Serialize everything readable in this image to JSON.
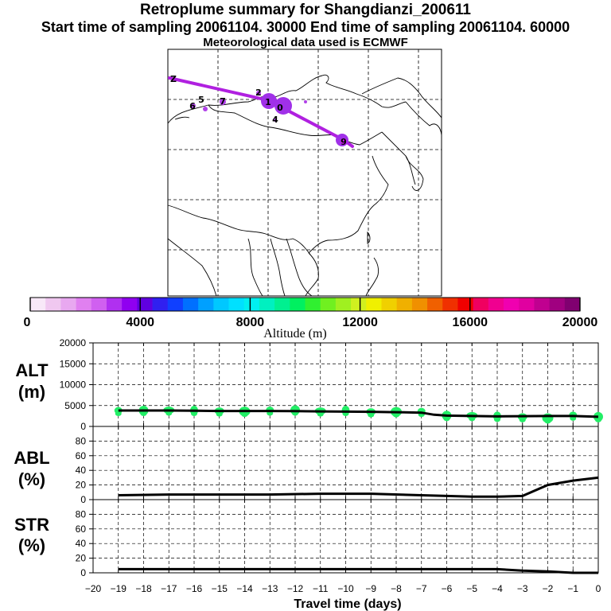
{
  "header": {
    "title": "Retroplume summary for Shangdianzi_200611",
    "sampling": "Start time of sampling 20061104. 30000     End time of sampling 20061104. 60000",
    "met": "Meteorological data used is ECMWF"
  },
  "colors": {
    "plume": "#b020e0",
    "points": "#22ee66",
    "line": "#000000"
  },
  "colorbar": {
    "labels": [
      "0",
      "4000",
      "8000",
      "12000",
      "16000",
      "20000"
    ],
    "title": "Altitude (m)",
    "colors": [
      "#f8e8f8",
      "#f0c8f0",
      "#e8a8f0",
      "#e080f0",
      "#d060f0",
      "#b030f0",
      "#9000f0",
      "#6000e0",
      "#3020f0",
      "#1040ff",
      "#0070ff",
      "#00a0ff",
      "#00c8ff",
      "#00e0ff",
      "#00f0f0",
      "#00f0c0",
      "#00f090",
      "#00f060",
      "#30f030",
      "#70f020",
      "#a0f020",
      "#d0f020",
      "#f0f000",
      "#f0d000",
      "#f0b000",
      "#f09000",
      "#f06000",
      "#f03000",
      "#f00000",
      "#f00060",
      "#f00090",
      "#f000b0",
      "#e000a0",
      "#c00090",
      "#a00080",
      "#800070"
    ]
  },
  "map": {
    "plume_labels": [
      "Z",
      "2",
      "1",
      "0",
      "5",
      "6",
      "7",
      "4",
      "9"
    ]
  },
  "chart_data": [
    {
      "type": "scatter",
      "name": "ALT",
      "ylabel": "ALT\n(m)",
      "label_line1": "ALT",
      "label_line2": "(m)",
      "ylim": [
        0,
        20000
      ],
      "yticks": [
        "20000",
        "15000",
        "10000",
        "5000",
        "0"
      ],
      "line_x": [
        -19,
        -18,
        -17,
        -16,
        -15,
        -14,
        -13,
        -12,
        -11,
        -10,
        -9,
        -8,
        -7,
        -6.5,
        -6,
        -5,
        -4,
        -3,
        -2,
        -1,
        0
      ],
      "line_y": [
        3800,
        3800,
        3800,
        3750,
        3700,
        3700,
        3700,
        3650,
        3600,
        3550,
        3500,
        3400,
        3300,
        2800,
        2600,
        2500,
        2400,
        2450,
        2500,
        2500,
        2300
      ],
      "points": [
        {
          "x": -19,
          "y": 3800
        },
        {
          "x": -18,
          "y": 3800
        },
        {
          "x": -17,
          "y": 3900
        },
        {
          "x": -16,
          "y": 3800
        },
        {
          "x": -15,
          "y": 3700
        },
        {
          "x": -14,
          "y": 3600
        },
        {
          "x": -13,
          "y": 3900
        },
        {
          "x": -12,
          "y": 3900
        },
        {
          "x": -11,
          "y": 3700
        },
        {
          "x": -10,
          "y": 3800
        },
        {
          "x": -9,
          "y": 3500
        },
        {
          "x": -8,
          "y": 3500
        },
        {
          "x": -7,
          "y": 3600
        },
        {
          "x": -6,
          "y": 2600
        },
        {
          "x": -5,
          "y": 2600
        },
        {
          "x": -4,
          "y": 2400
        },
        {
          "x": -3,
          "y": 2300
        },
        {
          "x": -2,
          "y": 2000
        },
        {
          "x": -1,
          "y": 2700
        },
        {
          "x": 0,
          "y": 2300
        }
      ]
    },
    {
      "type": "line",
      "name": "ABL",
      "ylabel": "ABL\n(%)",
      "label_line1": "ABL",
      "label_line2": "(%)",
      "ylim": [
        0,
        100
      ],
      "yticks": [
        "80",
        "60",
        "40",
        "20",
        "0"
      ],
      "x": [
        -19,
        -17,
        -15,
        -13,
        -11,
        -9,
        -7,
        -5,
        -4,
        -3,
        -2,
        -1,
        0
      ],
      "y": [
        6,
        7,
        7,
        7,
        8,
        8,
        6,
        4,
        4,
        5,
        20,
        26,
        30
      ]
    },
    {
      "type": "line",
      "name": "STR",
      "ylabel": "STR\n(%)",
      "label_line1": "STR",
      "label_line2": "(%)",
      "ylim": [
        0,
        100
      ],
      "yticks": [
        "80",
        "60",
        "40",
        "20",
        "0"
      ],
      "x": [
        -19,
        -15,
        -11,
        -7,
        -4,
        -3,
        -2,
        -1,
        0
      ],
      "y": [
        5,
        5,
        5,
        5,
        5,
        3,
        2,
        0,
        0
      ]
    },
    {
      "type": "axis",
      "name": "travel-time",
      "xlabel": "Travel time (days)",
      "xlim": [
        -20,
        0
      ],
      "xticks": [
        "−20",
        "−19",
        "−18",
        "−17",
        "−16",
        "−15",
        "−14",
        "−13",
        "−12",
        "−11",
        "−10",
        "−9",
        "−8",
        "−7",
        "−6",
        "−5",
        "−4",
        "−3",
        "−2",
        "−1",
        "0"
      ]
    }
  ]
}
